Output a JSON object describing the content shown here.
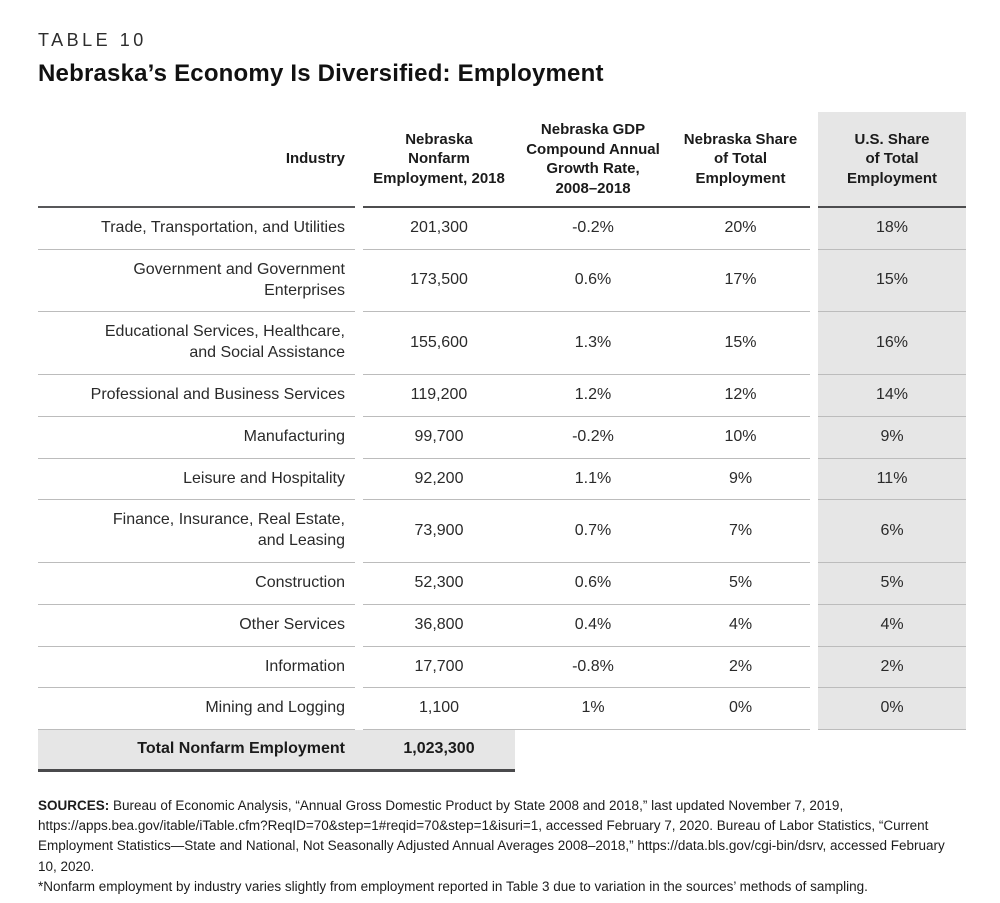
{
  "page": {
    "kicker": "TABLE 10",
    "title": "Nebraska’s Economy Is Diversified: Employment"
  },
  "table": {
    "headers": {
      "industry": "Industry",
      "employment": [
        "Nebraska",
        "Nonfarm",
        "Employment, 2018"
      ],
      "growth": [
        "Nebraska GDP",
        "Compound Annual",
        "Growth Rate,",
        "2008–2018"
      ],
      "ne_share": [
        "Nebraska Share",
        "of Total",
        "Employment"
      ],
      "us_share": [
        "U.S. Share",
        "of Total",
        "Employment"
      ]
    },
    "rows": [
      {
        "industry": "Trade, Transportation, and Utilities",
        "employment": "201,300",
        "growth": "-0.2%",
        "ne_share": "20%",
        "us_share": "18%"
      },
      {
        "industry": [
          "Government and Government",
          "Enterprises"
        ],
        "employment": "173,500",
        "growth": "0.6%",
        "ne_share": "17%",
        "us_share": "15%"
      },
      {
        "industry": [
          "Educational Services, Healthcare,",
          "and Social Assistance"
        ],
        "employment": "155,600",
        "growth": "1.3%",
        "ne_share": "15%",
        "us_share": "16%"
      },
      {
        "industry": "Professional and Business Services",
        "employment": "119,200",
        "growth": "1.2%",
        "ne_share": "12%",
        "us_share": "14%"
      },
      {
        "industry": "Manufacturing",
        "employment": "99,700",
        "growth": "-0.2%",
        "ne_share": "10%",
        "us_share": "9%"
      },
      {
        "industry": "Leisure and Hospitality",
        "employment": "92,200",
        "growth": "1.1%",
        "ne_share": "9%",
        "us_share": "11%"
      },
      {
        "industry": [
          "Finance, Insurance, Real Estate,",
          "and Leasing"
        ],
        "employment": "73,900",
        "growth": "0.7%",
        "ne_share": "7%",
        "us_share": "6%"
      },
      {
        "industry": "Construction",
        "employment": "52,300",
        "growth": "0.6%",
        "ne_share": "5%",
        "us_share": "5%"
      },
      {
        "industry": "Other Services",
        "employment": "36,800",
        "growth": "0.4%",
        "ne_share": "4%",
        "us_share": "4%"
      },
      {
        "industry": "Information",
        "employment": "17,700",
        "growth": "-0.8%",
        "ne_share": "2%",
        "us_share": "2%"
      },
      {
        "industry": "Mining and Logging",
        "employment": "1,100",
        "growth": "1%",
        "ne_share": "0%",
        "us_share": "0%"
      }
    ],
    "total": {
      "label": "Total Nonfarm Employment",
      "employment": "1,023,300"
    }
  },
  "footnote": {
    "sources_label": "SOURCES:",
    "sources_text": "Bureau of Economic Analysis, “Annual Gross Domestic Product by State 2008 and 2018,” last updated November 7, 2019, https://apps.bea.gov/itable/iTable.cfm?ReqID=70&step=1#reqid=70&step=1&isuri=1, accessed February 7, 2020. Bureau of Labor Statistics, “Current Employment Statistics—State and National, Not Seasonally Adjusted Annual Averages 2008–2018,” https://data.bls.gov/cgi-bin/dsrv, accessed February 10, 2020.",
    "note": "*Nonfarm employment by industry varies slightly from employment reported in Table 3 due to variation in the sources’ methods of sampling."
  },
  "colors": {
    "shade_fill": "#e6e6e6",
    "rule_light": "#bcbcbc",
    "rule_dark": "#4d4d4f",
    "text": "#231f20"
  }
}
